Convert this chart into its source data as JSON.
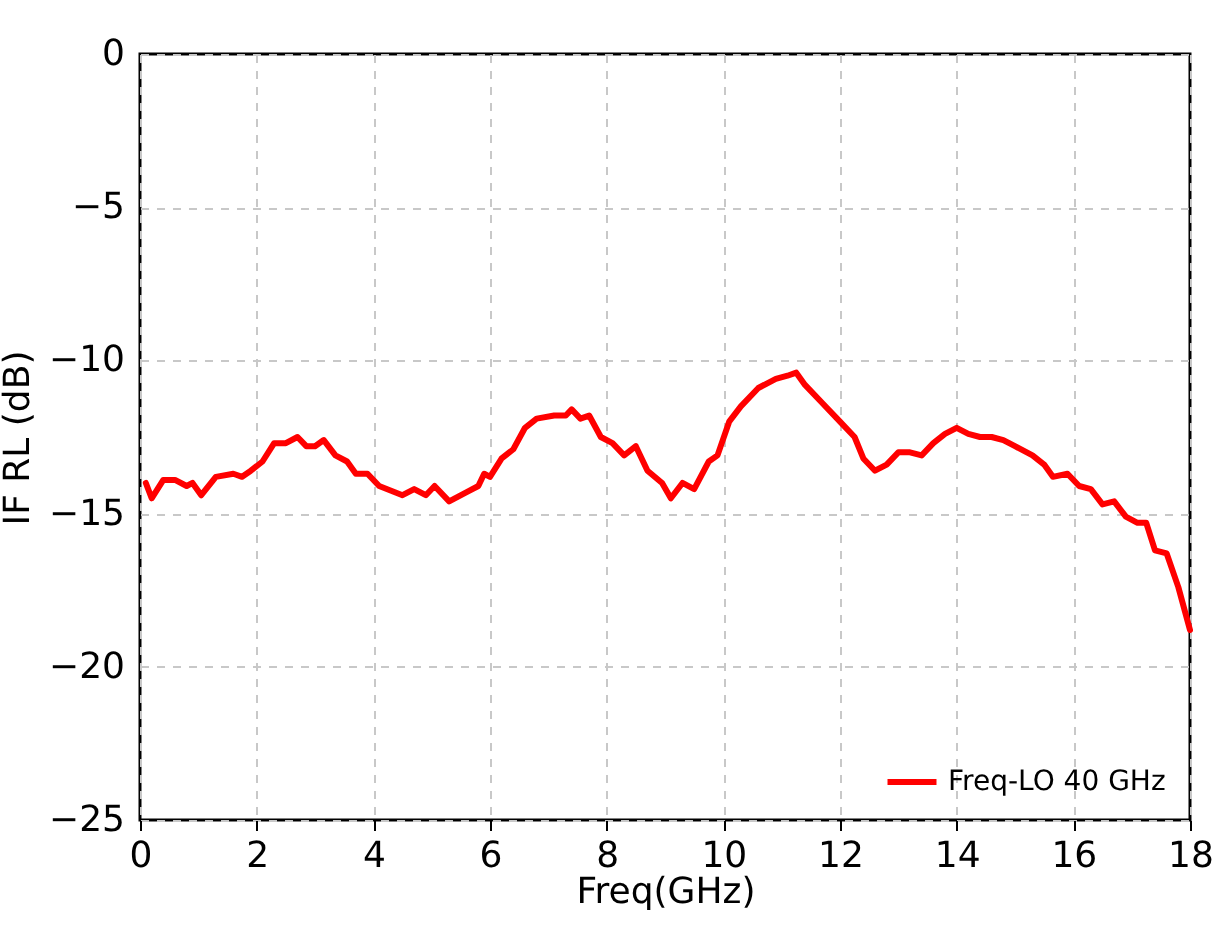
{
  "chart_data": {
    "type": "line",
    "xlabel": "Freq(GHz)",
    "ylabel": "IF RL   (dB)",
    "x": [
      0.1,
      0.2,
      0.4,
      0.6,
      0.8,
      0.9,
      1.05,
      1.3,
      1.6,
      1.75,
      1.9,
      2.1,
      2.3,
      2.5,
      2.7,
      2.85,
      3.0,
      3.15,
      3.35,
      3.55,
      3.7,
      3.9,
      4.1,
      4.5,
      4.7,
      4.9,
      5.05,
      5.3,
      5.6,
      5.8,
      5.9,
      6.0,
      6.2,
      6.4,
      6.6,
      6.8,
      7.1,
      7.3,
      7.4,
      7.55,
      7.7,
      7.9,
      8.1,
      8.3,
      8.5,
      8.7,
      8.95,
      9.1,
      9.3,
      9.5,
      9.75,
      9.9,
      10.1,
      10.3,
      10.6,
      10.9,
      11.1,
      11.25,
      11.4,
      11.7,
      12.0,
      12.25,
      12.4,
      12.6,
      12.8,
      13.0,
      13.2,
      13.4,
      13.6,
      13.8,
      14.0,
      14.2,
      14.4,
      14.6,
      14.8,
      15.0,
      15.3,
      15.5,
      15.65,
      15.9,
      16.1,
      16.3,
      16.5,
      16.7,
      16.9,
      17.1,
      17.25,
      17.4,
      17.6,
      17.8,
      18.0
    ],
    "series": [
      {
        "name": "Freq-LO 40 GHz",
        "color": "#ff0000",
        "values": [
          -14.0,
          -14.5,
          -13.9,
          -13.9,
          -14.1,
          -14.0,
          -14.4,
          -13.8,
          -13.7,
          -13.8,
          -13.6,
          -13.3,
          -12.7,
          -12.7,
          -12.5,
          -12.8,
          -12.8,
          -12.6,
          -13.1,
          -13.3,
          -13.7,
          -13.7,
          -14.1,
          -14.4,
          -14.2,
          -14.4,
          -14.1,
          -14.6,
          -14.3,
          -14.1,
          -13.7,
          -13.8,
          -13.2,
          -12.9,
          -12.2,
          -11.9,
          -11.8,
          -11.8,
          -11.6,
          -11.9,
          -11.8,
          -12.5,
          -12.7,
          -13.1,
          -12.8,
          -13.6,
          -14.0,
          -14.5,
          -14.0,
          -14.2,
          -13.3,
          -13.1,
          -12.0,
          -11.5,
          -10.9,
          -10.6,
          -10.5,
          -10.4,
          -10.8,
          -11.4,
          -12.0,
          -12.5,
          -13.2,
          -13.6,
          -13.4,
          -13.0,
          -13.0,
          -13.1,
          -12.7,
          -12.4,
          -12.2,
          -12.4,
          -12.5,
          -12.5,
          -12.6,
          -12.8,
          -13.1,
          -13.4,
          -13.8,
          -13.7,
          -14.1,
          -14.2,
          -14.7,
          -14.6,
          -15.1,
          -15.3,
          -15.3,
          -16.2,
          -16.3,
          -17.4,
          -18.8
        ]
      }
    ],
    "xlim": [
      0,
      18
    ],
    "xticks": [
      0,
      2,
      4,
      6,
      8,
      10,
      12,
      14,
      16,
      18
    ],
    "ylim": [
      -25,
      0
    ],
    "yticks": [
      -25,
      -20,
      -15,
      -10,
      -5,
      0
    ],
    "grid": true,
    "legend": "bottom right",
    "line_style": "solid",
    "marker": "none"
  }
}
